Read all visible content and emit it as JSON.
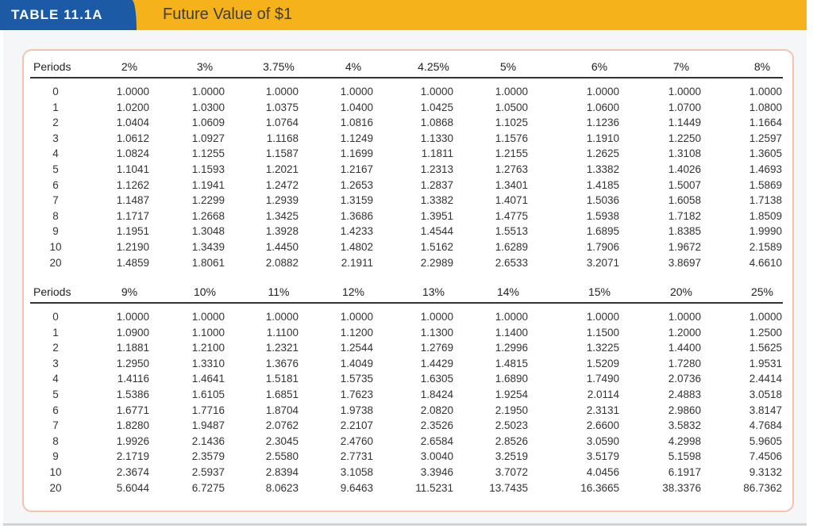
{
  "header": {
    "label": "TABLE 11.1A",
    "title": "Future Value of $1"
  },
  "tables": [
    {
      "columns": [
        "Periods",
        "2%",
        "3%",
        "3.75%",
        "4%",
        "4.25%",
        "5%",
        "6%",
        "7%",
        "8%"
      ],
      "rows": [
        [
          "0",
          "1.0000",
          "1.0000",
          "1.0000",
          "1.0000",
          "1.0000",
          "1.0000",
          "1.0000",
          "1.0000",
          "1.0000"
        ],
        [
          "1",
          "1.0200",
          "1.0300",
          "1.0375",
          "1.0400",
          "1.0425",
          "1.0500",
          "1.0600",
          "1.0700",
          "1.0800"
        ],
        [
          "2",
          "1.0404",
          "1.0609",
          "1.0764",
          "1.0816",
          "1.0868",
          "1.1025",
          "1.1236",
          "1.1449",
          "1.1664"
        ],
        [
          "3",
          "1.0612",
          "1.0927",
          "1.1168",
          "1.1249",
          "1.1330",
          "1.1576",
          "1.1910",
          "1.2250",
          "1.2597"
        ],
        [
          "4",
          "1.0824",
          "1.1255",
          "1.1587",
          "1.1699",
          "1.1811",
          "1.2155",
          "1.2625",
          "1.3108",
          "1.3605"
        ],
        [
          "5",
          "1.1041",
          "1.1593",
          "1.2021",
          "1.2167",
          "1.2313",
          "1.2763",
          "1.3382",
          "1.4026",
          "1.4693"
        ],
        [
          "6",
          "1.1262",
          "1.1941",
          "1.2472",
          "1.2653",
          "1.2837",
          "1.3401",
          "1.4185",
          "1.5007",
          "1.5869"
        ],
        [
          "7",
          "1.1487",
          "1.2299",
          "1.2939",
          "1.3159",
          "1.3382",
          "1.4071",
          "1.5036",
          "1.6058",
          "1.7138"
        ],
        [
          "8",
          "1.1717",
          "1.2668",
          "1.3425",
          "1.3686",
          "1.3951",
          "1.4775",
          "1.5938",
          "1.7182",
          "1.8509"
        ],
        [
          "9",
          "1.1951",
          "1.3048",
          "1.3928",
          "1.4233",
          "1.4544",
          "1.5513",
          "1.6895",
          "1.8385",
          "1.9990"
        ],
        [
          "10",
          "1.2190",
          "1.3439",
          "1.4450",
          "1.4802",
          "1.5162",
          "1.6289",
          "1.7906",
          "1.9672",
          "2.1589"
        ],
        [
          "20",
          "1.4859",
          "1.8061",
          "2.0882",
          "2.1911",
          "2.2989",
          "2.6533",
          "3.2071",
          "3.8697",
          "4.6610"
        ]
      ]
    },
    {
      "columns": [
        "Periods",
        "9%",
        "10%",
        "11%",
        "12%",
        "13%",
        "14%",
        "15%",
        "20%",
        "25%"
      ],
      "rows": [
        [
          "0",
          "1.0000",
          "1.0000",
          "1.0000",
          "1.0000",
          "1.0000",
          "1.0000",
          "1.0000",
          "1.0000",
          "1.0000"
        ],
        [
          "1",
          "1.0900",
          "1.1000",
          "1.1100",
          "1.1200",
          "1.1300",
          "1.1400",
          "1.1500",
          "1.2000",
          "1.2500"
        ],
        [
          "2",
          "1.1881",
          "1.2100",
          "1.2321",
          "1.2544",
          "1.2769",
          "1.2996",
          "1.3225",
          "1.4400",
          "1.5625"
        ],
        [
          "3",
          "1.2950",
          "1.3310",
          "1.3676",
          "1.4049",
          "1.4429",
          "1.4815",
          "1.5209",
          "1.7280",
          "1.9531"
        ],
        [
          "4",
          "1.4116",
          "1.4641",
          "1.5181",
          "1.5735",
          "1.6305",
          "1.6890",
          "1.7490",
          "2.0736",
          "2.4414"
        ],
        [
          "5",
          "1.5386",
          "1.6105",
          "1.6851",
          "1.7623",
          "1.8424",
          "1.9254",
          "2.0114",
          "2.4883",
          "3.0518"
        ],
        [
          "6",
          "1.6771",
          "1.7716",
          "1.8704",
          "1.9738",
          "2.0820",
          "2.1950",
          "2.3131",
          "2.9860",
          "3.8147"
        ],
        [
          "7",
          "1.8280",
          "1.9487",
          "2.0762",
          "2.2107",
          "2.3526",
          "2.5023",
          "2.6600",
          "3.5832",
          "4.7684"
        ],
        [
          "8",
          "1.9926",
          "2.1436",
          "2.3045",
          "2.4760",
          "2.6584",
          "2.8526",
          "3.0590",
          "4.2998",
          "5.9605"
        ],
        [
          "9",
          "2.1719",
          "2.3579",
          "2.5580",
          "2.7731",
          "3.0040",
          "3.2519",
          "3.5179",
          "5.1598",
          "7.4506"
        ],
        [
          "10",
          "2.3674",
          "2.5937",
          "2.8394",
          "3.1058",
          "3.3946",
          "3.7072",
          "4.0456",
          "6.1917",
          "9.3132"
        ],
        [
          "20",
          "5.6044",
          "6.7275",
          "8.0623",
          "9.6463",
          "11.5231",
          "13.7435",
          "16.3665",
          "38.3376",
          "86.7362"
        ]
      ]
    }
  ]
}
